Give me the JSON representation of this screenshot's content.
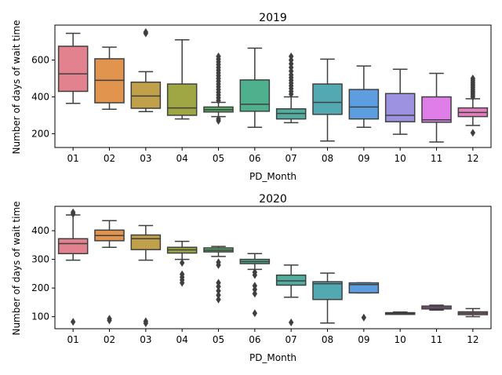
{
  "chart_data": [
    {
      "type": "box",
      "title": "2019",
      "xlabel": "PD_Month",
      "ylabel": "Number of days of wait time",
      "ylim": [
        125,
        790
      ],
      "yticks": [
        200,
        400,
        600
      ],
      "categories": [
        "01",
        "02",
        "03",
        "04",
        "05",
        "06",
        "07",
        "08",
        "09",
        "10",
        "11",
        "12"
      ],
      "colors": [
        "#e1828e",
        "#e0944e",
        "#c0a04a",
        "#9fa745",
        "#54b163",
        "#4fb08e",
        "#50ae9e",
        "#53a9b2",
        "#5c9ee0",
        "#9c92e0",
        "#df7ee9",
        "#e580c0"
      ],
      "boxes": [
        {
          "whislo": 365,
          "q1": 430,
          "med": 525,
          "q3": 675,
          "whishi": 745,
          "fliers": []
        },
        {
          "whislo": 333,
          "q1": 368,
          "med": 490,
          "q3": 607,
          "whishi": 670,
          "fliers": []
        },
        {
          "whislo": 320,
          "q1": 338,
          "med": 405,
          "q3": 480,
          "whishi": 537,
          "fliers": [
            745,
            752
          ]
        },
        {
          "whislo": 280,
          "q1": 300,
          "med": 340,
          "q3": 470,
          "whishi": 710,
          "fliers": []
        },
        {
          "whislo": 293,
          "q1": 318,
          "med": 330,
          "q3": 345,
          "whishi": 370,
          "fliers": [
            270,
            280,
            380,
            395,
            410,
            425,
            440,
            455,
            470,
            485,
            500,
            515,
            530,
            545,
            560,
            575,
            590,
            605,
            620
          ]
        },
        {
          "whislo": 235,
          "q1": 322,
          "med": 360,
          "q3": 492,
          "whishi": 665,
          "fliers": []
        },
        {
          "whislo": 260,
          "q1": 280,
          "med": 310,
          "q3": 335,
          "whishi": 400,
          "fliers": [
            415,
            430,
            445,
            460,
            475,
            490,
            505,
            520,
            540,
            560,
            580,
            600,
            620
          ]
        },
        {
          "whislo": 160,
          "q1": 305,
          "med": 370,
          "q3": 470,
          "whishi": 605,
          "fliers": []
        },
        {
          "whislo": 235,
          "q1": 280,
          "med": 345,
          "q3": 440,
          "whishi": 568,
          "fliers": []
        },
        {
          "whislo": 197,
          "q1": 265,
          "med": 300,
          "q3": 418,
          "whishi": 550,
          "fliers": []
        },
        {
          "whislo": 155,
          "q1": 262,
          "med": 275,
          "q3": 400,
          "whishi": 528,
          "fliers": []
        },
        {
          "whislo": 245,
          "q1": 293,
          "med": 315,
          "q3": 340,
          "whishi": 390,
          "fliers": [
            205,
            400,
            410,
            420,
            430,
            440,
            450,
            460,
            470,
            480,
            490,
            500
          ]
        }
      ]
    },
    {
      "type": "box",
      "title": "2020",
      "xlabel": "PD_Month",
      "ylabel": "Number of days of wait time",
      "ylim": [
        58,
        485
      ],
      "yticks": [
        100,
        200,
        300,
        400
      ],
      "categories": [
        "01",
        "02",
        "03",
        "04",
        "05",
        "06",
        "07",
        "08",
        "09",
        "10",
        "11",
        "12"
      ],
      "colors": [
        "#e1828e",
        "#e0944e",
        "#c0a04a",
        "#9fa745",
        "#54b163",
        "#4fb08e",
        "#50ae9e",
        "#53a9b2",
        "#5c9ee0",
        "#9c92e0",
        "#df7ee9",
        "#e580c0"
      ],
      "boxes": [
        {
          "whislo": 297,
          "q1": 320,
          "med": 355,
          "q3": 372,
          "whishi": 455,
          "fliers": [
            82,
            458,
            464
          ]
        },
        {
          "whislo": 342,
          "q1": 365,
          "med": 383,
          "q3": 402,
          "whishi": 435,
          "fliers": [
            87,
            93
          ]
        },
        {
          "whislo": 297,
          "q1": 334,
          "med": 372,
          "q3": 385,
          "whishi": 418,
          "fliers": [
            77,
            84
          ]
        },
        {
          "whislo": 300,
          "q1": 322,
          "med": 333,
          "q3": 342,
          "whishi": 363,
          "fliers": [
            218,
            228,
            238,
            248,
            288
          ]
        },
        {
          "whislo": 310,
          "q1": 326,
          "med": 332,
          "q3": 340,
          "whishi": 345,
          "fliers": [
            160,
            175,
            190,
            205,
            218,
            280,
            290
          ]
        },
        {
          "whislo": 265,
          "q1": 285,
          "med": 292,
          "q3": 300,
          "whishi": 320,
          "fliers": [
            112,
            180,
            195,
            208,
            245,
            255
          ]
        },
        {
          "whislo": 168,
          "q1": 210,
          "med": 225,
          "q3": 245,
          "whishi": 280,
          "fliers": [
            80
          ]
        },
        {
          "whislo": 78,
          "q1": 160,
          "med": 215,
          "q3": 222,
          "whishi": 252,
          "fliers": []
        },
        {
          "whislo": 183,
          "q1": 183,
          "med": 212,
          "q3": 218,
          "whishi": 218,
          "fliers": [
            97
          ]
        },
        {
          "whislo": 108,
          "q1": 108,
          "med": 112,
          "q3": 114,
          "whishi": 116,
          "fliers": []
        },
        {
          "whislo": 123,
          "q1": 127,
          "med": 132,
          "q3": 137,
          "whishi": 140,
          "fliers": []
        },
        {
          "whislo": 100,
          "q1": 107,
          "med": 112,
          "q3": 117,
          "whishi": 128,
          "fliers": []
        }
      ]
    }
  ]
}
